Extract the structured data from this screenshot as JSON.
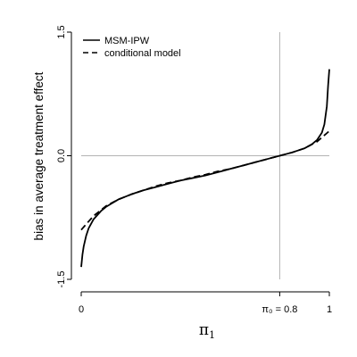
{
  "chart_data": {
    "type": "line",
    "title": "",
    "xlabel": "π",
    "xlabel_sub": "1",
    "ylabel": "bias in average treatment effect",
    "xlim": [
      0,
      1
    ],
    "ylim": [
      -1.5,
      1.5
    ],
    "x_ticks": [
      {
        "value": 0,
        "label": "0"
      },
      {
        "value": 0.8,
        "label": "π₀ = 0.8"
      },
      {
        "value": 1,
        "label": "1"
      }
    ],
    "y_ticks": [
      {
        "value": -1.5,
        "label": "-1.5"
      },
      {
        "value": 0,
        "label": "0.0"
      },
      {
        "value": 1.5,
        "label": "1.5"
      }
    ],
    "reference_lines": {
      "vertical_x": 0.8,
      "horizontal_y": 0
    },
    "legend_position": "top-left",
    "series": [
      {
        "name": "MSM-IPW",
        "style": "solid",
        "color": "#000000",
        "x": [
          0.0,
          0.005,
          0.01,
          0.02,
          0.03,
          0.05,
          0.08,
          0.1,
          0.15,
          0.2,
          0.25,
          0.3,
          0.35,
          0.4,
          0.45,
          0.5,
          0.55,
          0.6,
          0.65,
          0.7,
          0.75,
          0.8,
          0.85,
          0.9,
          0.93,
          0.95,
          0.97,
          0.98,
          0.99,
          0.995,
          1.0
        ],
        "y": [
          -1.35,
          -1.2,
          -1.1,
          -0.97,
          -0.88,
          -0.77,
          -0.67,
          -0.62,
          -0.53,
          -0.47,
          -0.42,
          -0.38,
          -0.34,
          -0.3,
          -0.27,
          -0.24,
          -0.2,
          -0.16,
          -0.12,
          -0.08,
          -0.04,
          0.0,
          0.04,
          0.09,
          0.14,
          0.19,
          0.28,
          0.38,
          0.6,
          0.85,
          1.05
        ]
      },
      {
        "name": "conditional model",
        "style": "dashed",
        "color": "#000000",
        "x": [
          0.0,
          0.02,
          0.05,
          0.1,
          0.15,
          0.2,
          0.25,
          0.3,
          0.35,
          0.4,
          0.45,
          0.5,
          0.55,
          0.6,
          0.65,
          0.7,
          0.75,
          0.8,
          0.85,
          0.9,
          0.95,
          1.0
        ],
        "y": [
          -0.9,
          -0.83,
          -0.73,
          -0.61,
          -0.53,
          -0.47,
          -0.42,
          -0.37,
          -0.33,
          -0.3,
          -0.26,
          -0.23,
          -0.19,
          -0.16,
          -0.12,
          -0.08,
          -0.04,
          0.0,
          0.04,
          0.09,
          0.17,
          0.3
        ]
      }
    ]
  }
}
